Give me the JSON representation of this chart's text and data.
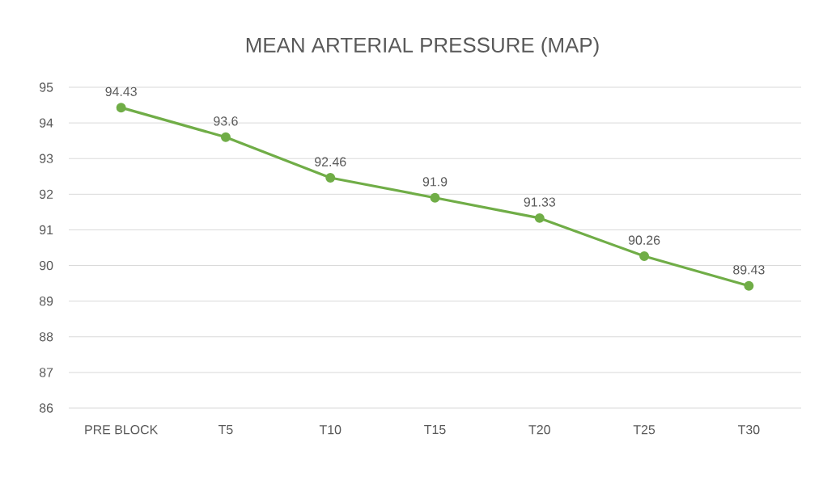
{
  "chart_data": {
    "type": "line",
    "title": "MEAN ARTERIAL PRESSURE (MAP)",
    "categories": [
      "PRE BLOCK",
      "T5",
      "T10",
      "T15",
      "T20",
      "T25",
      "T30"
    ],
    "series": [
      {
        "color": "#70ad47",
        "values": [
          94.43,
          93.6,
          92.46,
          91.9,
          91.33,
          90.26,
          89.43
        ]
      }
    ],
    "ylim": [
      86,
      95
    ],
    "yticks": [
      86,
      87,
      88,
      89,
      90,
      91,
      92,
      93,
      94,
      95
    ],
    "grid": "y",
    "marker": "circle",
    "line_style": "solid",
    "data_labels": true
  }
}
